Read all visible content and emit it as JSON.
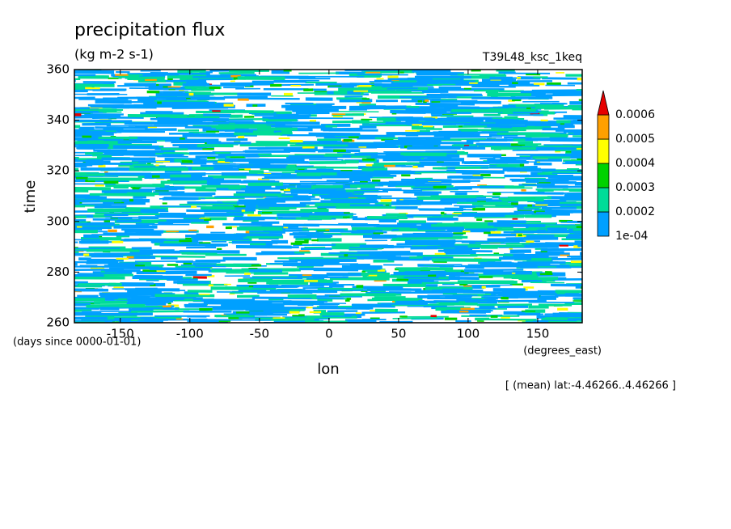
{
  "chart_data": {
    "type": "contour",
    "title": "precipitation flux",
    "units": "(kg m-2 s-1)",
    "experiment": "T39L48_ksc_1keq",
    "x_label": "lon",
    "x_units": "(degrees_east)",
    "y_label": "time",
    "y_units": "(days since 0000-01-01)",
    "annotation": "[ (mean) lat:-4.46266..4.46266 ]",
    "xlim": [
      -183,
      182
    ],
    "xticks": [
      -150,
      -100,
      -50,
      0,
      50,
      100,
      150
    ],
    "ylim": [
      260,
      360
    ],
    "yticks": [
      260,
      280,
      300,
      320,
      340,
      360
    ],
    "levels": [
      {
        "value": 0.0001,
        "label": "1e-04"
      },
      0.0002,
      0.0003,
      0.0004,
      0.0005,
      0.0006
    ],
    "colors": [
      "#00a0ff",
      "#00dc98",
      "#00d200",
      "#ffff00",
      "#ffa000",
      "#e60000"
    ]
  }
}
